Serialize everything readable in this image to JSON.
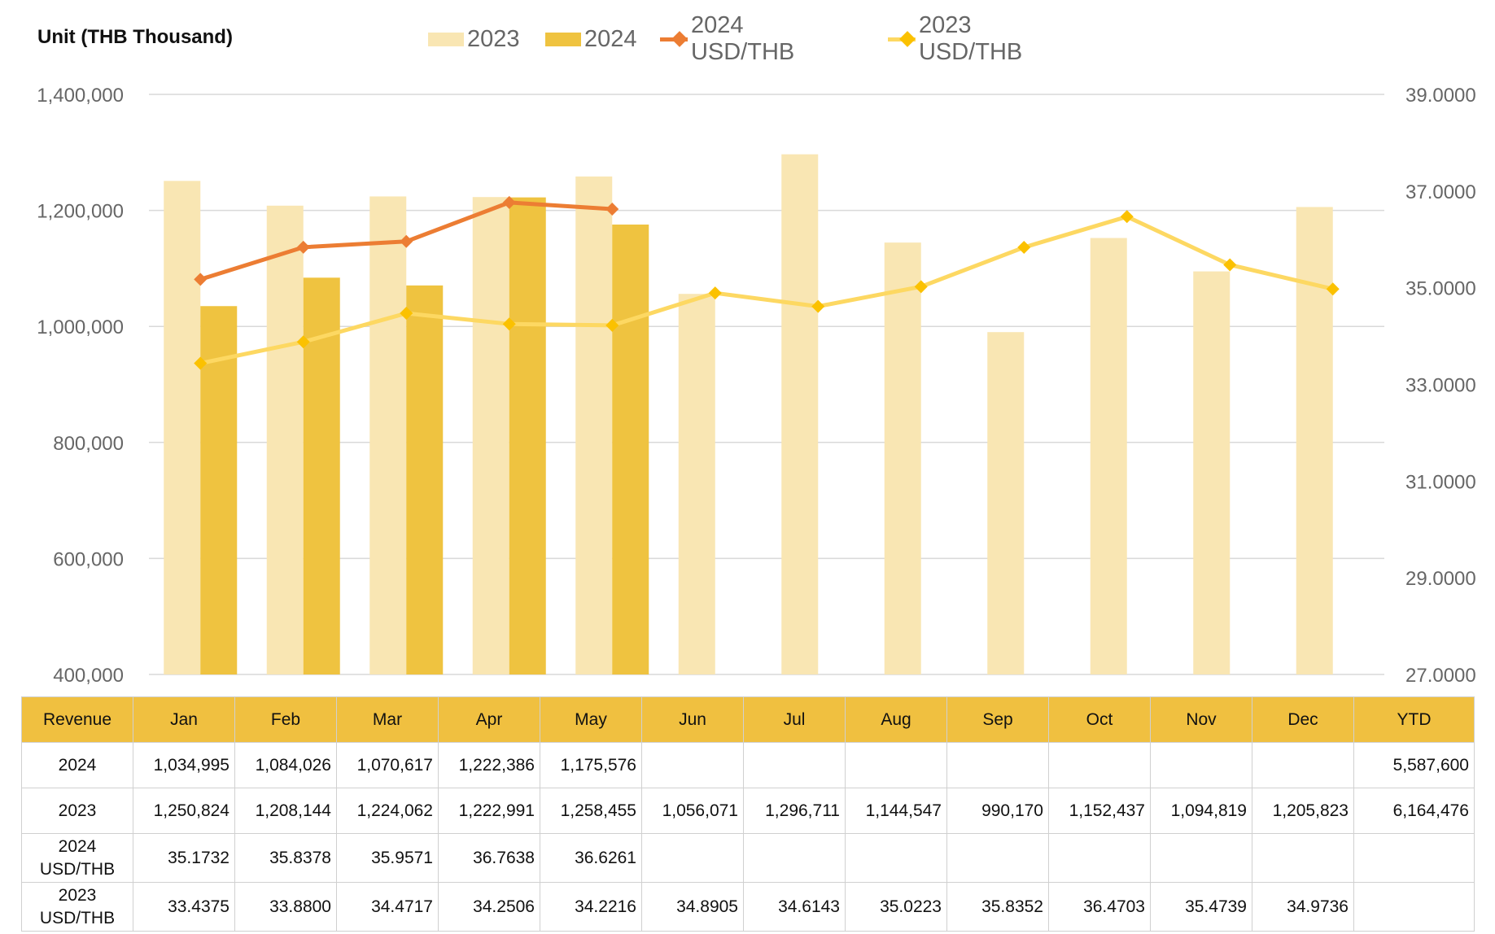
{
  "unit_label": "Unit (THB  Thousand)",
  "colors": {
    "bar_2023": "#f9e6b3",
    "bar_2024": "#efc340",
    "line_2024": "#ec7d33",
    "line_2023": "#fdd862",
    "marker_2023": "#fbc100",
    "grid": "#d9d9d9",
    "table_header": "#f0c040"
  },
  "legend": [
    {
      "label": "2023",
      "kind": "bar",
      "color": "#f9e6b3"
    },
    {
      "label": "2024",
      "kind": "bar",
      "color": "#efc340"
    },
    {
      "label": "2024 USD/THB",
      "kind": "line",
      "color": "#ec7d33"
    },
    {
      "label": "2023 USD/THB",
      "kind": "line",
      "color": "#fdd862"
    }
  ],
  "chart_data": {
    "type": "bar",
    "categories": [
      "Jan",
      "Feb",
      "Mar",
      "Apr",
      "May",
      "Jun",
      "Jul",
      "Aug",
      "Sep",
      "Oct",
      "Nov",
      "Dec"
    ],
    "series": [
      {
        "name": "2023",
        "type": "bar",
        "axis": "left",
        "values": [
          1250824,
          1208144,
          1224062,
          1222991,
          1258455,
          1056071,
          1296711,
          1144547,
          990170,
          1152437,
          1094819,
          1205823
        ]
      },
      {
        "name": "2024",
        "type": "bar",
        "axis": "left",
        "values": [
          1034995,
          1084026,
          1070617,
          1222386,
          1175576,
          null,
          null,
          null,
          null,
          null,
          null,
          null
        ]
      },
      {
        "name": "2024 USD/THB",
        "type": "line",
        "axis": "right",
        "values": [
          35.1732,
          35.8378,
          35.9571,
          36.7638,
          36.6261,
          null,
          null,
          null,
          null,
          null,
          null,
          null
        ]
      },
      {
        "name": "2023 USD/THB",
        "type": "line",
        "axis": "right",
        "values": [
          33.4375,
          33.88,
          34.4717,
          34.2506,
          34.2216,
          34.8905,
          34.6143,
          35.0223,
          35.8352,
          36.4703,
          35.4739,
          34.9736
        ]
      }
    ],
    "y_left": {
      "range": [
        400000,
        1400000
      ],
      "ticks": [
        "400,000",
        "600,000",
        "800,000",
        "1,000,000",
        "1,200,000",
        "1,400,000"
      ]
    },
    "y_right": {
      "range": [
        27,
        39
      ],
      "ticks": [
        "27.0000",
        "29.0000",
        "31.0000",
        "33.0000",
        "35.0000",
        "37.0000",
        "39.0000"
      ]
    },
    "grid": true,
    "legend_position": "top"
  },
  "table": {
    "header": [
      "Revenue",
      "Jan",
      "Feb",
      "Mar",
      "Apr",
      "May",
      "Jun",
      "Jul",
      "Aug",
      "Sep",
      "Oct",
      "Nov",
      "Dec",
      "YTD"
    ],
    "rows": [
      {
        "label": [
          "2024"
        ],
        "cells": [
          "1,034,995",
          "1,084,026",
          "1,070,617",
          "1,222,386",
          "1,175,576",
          "",
          "",
          "",
          "",
          "",
          "",
          "",
          "5,587,600"
        ]
      },
      {
        "label": [
          "2023"
        ],
        "cells": [
          "1,250,824",
          "1,208,144",
          "1,224,062",
          "1,222,991",
          "1,258,455",
          "1,056,071",
          "1,296,711",
          "1,144,547",
          "990,170",
          "1,152,437",
          "1,094,819",
          "1,205,823",
          "6,164,476"
        ]
      },
      {
        "label": [
          "2024",
          "USD/THB"
        ],
        "cells": [
          "35.1732",
          "35.8378",
          "35.9571",
          "36.7638",
          "36.6261",
          "",
          "",
          "",
          "",
          "",
          "",
          "",
          ""
        ]
      },
      {
        "label": [
          "2023",
          "USD/THB"
        ],
        "cells": [
          "33.4375",
          "33.8800",
          "34.4717",
          "34.2506",
          "34.2216",
          "34.8905",
          "34.6143",
          "35.0223",
          "35.8352",
          "36.4703",
          "35.4739",
          "34.9736",
          ""
        ]
      }
    ]
  }
}
